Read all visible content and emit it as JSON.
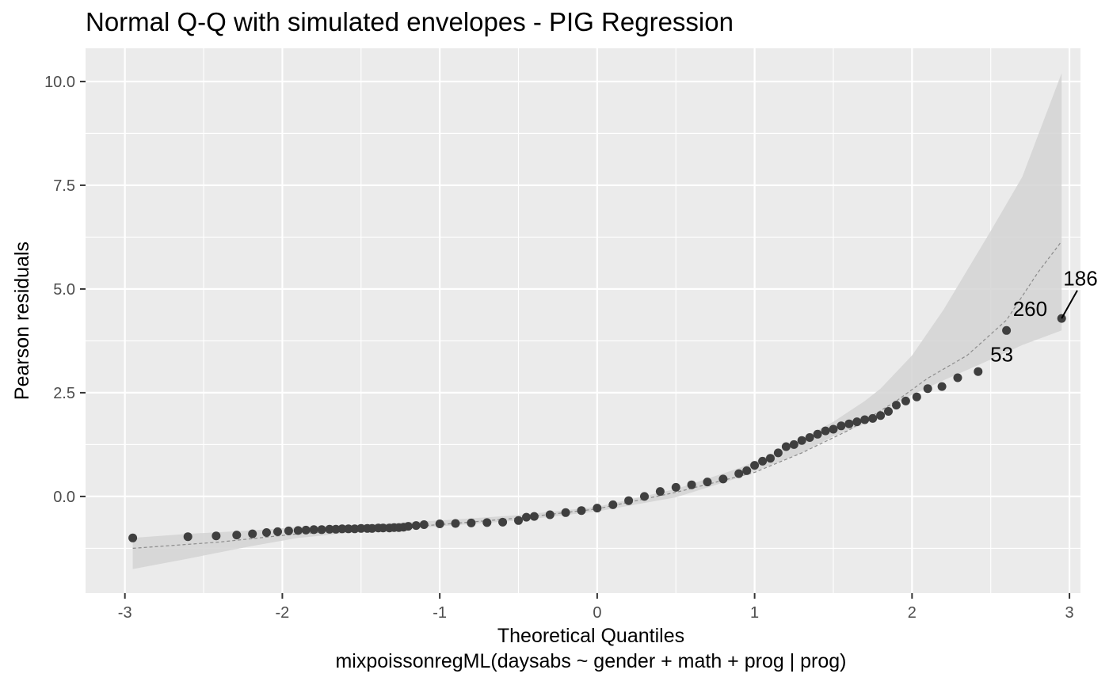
{
  "chart_data": {
    "type": "scatter",
    "title": "Normal Q-Q with simulated envelopes - PIG Regression",
    "xlabel": "Theoretical Quantiles",
    "xlabel_sub": "mixpoissonregML(daysabs ~ gender + math + prog | prog)",
    "ylabel": "Pearson residuals",
    "xlim": [
      -3.25,
      3.07
    ],
    "ylim": [
      -2.33,
      10.8
    ],
    "x_ticks": [
      -3,
      -2,
      -1,
      0,
      1,
      2,
      3
    ],
    "x_tick_labels": [
      "-3",
      "-2",
      "-1",
      "0",
      "1",
      "2",
      "3"
    ],
    "y_ticks": [
      0,
      2.5,
      5,
      7.5,
      10
    ],
    "y_tick_labels": [
      "0.0",
      "2.5",
      "5.0",
      "7.5",
      "10.0"
    ],
    "grid": true,
    "colors": {
      "panel": "#ebebeb",
      "grid": "#ffffff",
      "envelope": "#d3d3d3",
      "points": "#3f3f3f",
      "median_line": "#8c8c8c"
    },
    "envelope": {
      "x": [
        -2.95,
        -2.6,
        -2.2,
        -1.9,
        -1.5,
        -1.0,
        -0.5,
        0.0,
        0.5,
        0.9,
        1.1,
        1.3,
        1.5,
        1.7,
        1.8,
        1.9,
        2.0,
        2.2,
        2.5,
        2.7,
        2.95
      ],
      "lower": [
        -1.75,
        -1.5,
        -1.2,
        -1.0,
        -0.85,
        -0.72,
        -0.58,
        -0.36,
        -0.02,
        0.45,
        0.75,
        1.05,
        1.45,
        1.75,
        2.0,
        2.25,
        2.45,
        2.8,
        3.3,
        3.65,
        4.0
      ],
      "upper": [
        -1.0,
        -0.9,
        -0.82,
        -0.74,
        -0.68,
        -0.58,
        -0.45,
        -0.25,
        0.18,
        0.68,
        1.0,
        1.4,
        1.8,
        2.3,
        2.6,
        3.0,
        3.4,
        4.5,
        6.4,
        7.7,
        10.2
      ]
    },
    "median_line": {
      "x": [
        -2.95,
        -2.4,
        -1.9,
        -1.5,
        -1.0,
        -0.5,
        0.0,
        0.5,
        1.0,
        1.3,
        1.6,
        1.9,
        2.1,
        2.35,
        2.6,
        2.8,
        2.95
      ],
      "y": [
        -1.25,
        -1.1,
        -0.9,
        -0.8,
        -0.68,
        -0.52,
        -0.3,
        0.1,
        0.58,
        1.05,
        1.6,
        2.3,
        2.85,
        3.4,
        4.25,
        5.4,
        6.15
      ]
    },
    "points": {
      "x": [
        -2.95,
        -2.6,
        -2.42,
        -2.29,
        -2.19,
        -2.1,
        -2.03,
        -1.96,
        -1.9,
        -1.85,
        -1.8,
        -1.75,
        -1.7,
        -1.66,
        -1.62,
        -1.58,
        -1.54,
        -1.5,
        -1.46,
        -1.43,
        -1.39,
        -1.36,
        -1.32,
        -1.29,
        -1.26,
        -1.23,
        -1.2,
        -1.15,
        -1.1,
        -1.0,
        -0.9,
        -0.8,
        -0.7,
        -0.6,
        -0.5,
        -0.45,
        -0.4,
        -0.3,
        -0.2,
        -0.1,
        0.0,
        0.1,
        0.2,
        0.3,
        0.4,
        0.5,
        0.6,
        0.7,
        0.8,
        0.9,
        0.95,
        1.0,
        1.05,
        1.1,
        1.15,
        1.2,
        1.25,
        1.3,
        1.35,
        1.4,
        1.45,
        1.5,
        1.55,
        1.6,
        1.65,
        1.7,
        1.75,
        1.8,
        1.85,
        1.9,
        1.96,
        2.03,
        2.1,
        2.19,
        2.29,
        2.42,
        2.6,
        2.95
      ],
      "y": [
        -1.0,
        -0.97,
        -0.95,
        -0.93,
        -0.9,
        -0.87,
        -0.85,
        -0.83,
        -0.82,
        -0.81,
        -0.8,
        -0.8,
        -0.79,
        -0.79,
        -0.78,
        -0.78,
        -0.78,
        -0.77,
        -0.77,
        -0.77,
        -0.76,
        -0.76,
        -0.76,
        -0.75,
        -0.75,
        -0.74,
        -0.72,
        -0.7,
        -0.68,
        -0.66,
        -0.65,
        -0.64,
        -0.63,
        -0.62,
        -0.58,
        -0.5,
        -0.48,
        -0.44,
        -0.39,
        -0.34,
        -0.28,
        -0.2,
        -0.1,
        0.0,
        0.12,
        0.22,
        0.28,
        0.35,
        0.42,
        0.55,
        0.62,
        0.75,
        0.85,
        0.92,
        1.05,
        1.2,
        1.25,
        1.35,
        1.42,
        1.5,
        1.58,
        1.62,
        1.7,
        1.75,
        1.8,
        1.85,
        1.88,
        1.95,
        2.05,
        2.2,
        2.3,
        2.4,
        2.6,
        2.65,
        2.86,
        3.01,
        4.0,
        4.29
      ]
    },
    "annotations": [
      {
        "label": "186",
        "x": 2.95,
        "y": 4.29,
        "text_x": 3.07,
        "text_y": 5.08,
        "leader": true
      },
      {
        "label": "260",
        "x": 2.6,
        "y": 4.0,
        "text_x": 2.75,
        "text_y": 4.35,
        "leader": false
      },
      {
        "label": "53",
        "x": 2.42,
        "y": 3.01,
        "text_x": 2.57,
        "text_y": 3.25,
        "leader": false
      }
    ]
  }
}
